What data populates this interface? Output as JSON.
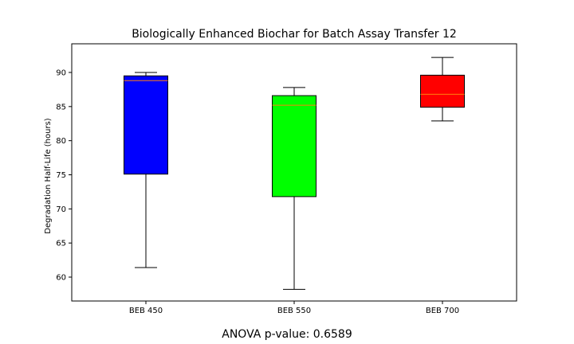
{
  "chart_data": {
    "type": "box",
    "title": "Biologically Enhanced Biochar for Batch Assay Transfer 12",
    "xlabel": "",
    "ylabel": "Degradation Half-Life (hours)",
    "ylim": [
      56.5,
      94.2
    ],
    "yticks": [
      60,
      65,
      70,
      75,
      80,
      85,
      90
    ],
    "grid": false,
    "categories": [
      "BEB 450",
      "BEB 550",
      "BEB 700"
    ],
    "boxes": [
      {
        "category": "BEB 450",
        "whisker_low": 61.4,
        "q1": 75.1,
        "median": 88.8,
        "q3": 89.5,
        "whisker_high": 90.0,
        "color": "#0000ff"
      },
      {
        "category": "BEB 550",
        "whisker_low": 58.2,
        "q1": 71.8,
        "median": 85.2,
        "q3": 86.6,
        "whisker_high": 87.8,
        "color": "#00ff00"
      },
      {
        "category": "BEB 700",
        "whisker_low": 82.9,
        "q1": 84.9,
        "median": 86.8,
        "q3": 89.6,
        "whisker_high": 92.2,
        "color": "#ff0000"
      }
    ],
    "median_line_color": "#ff7f0e"
  },
  "footnote": "ANOVA p-value: 0.6589"
}
